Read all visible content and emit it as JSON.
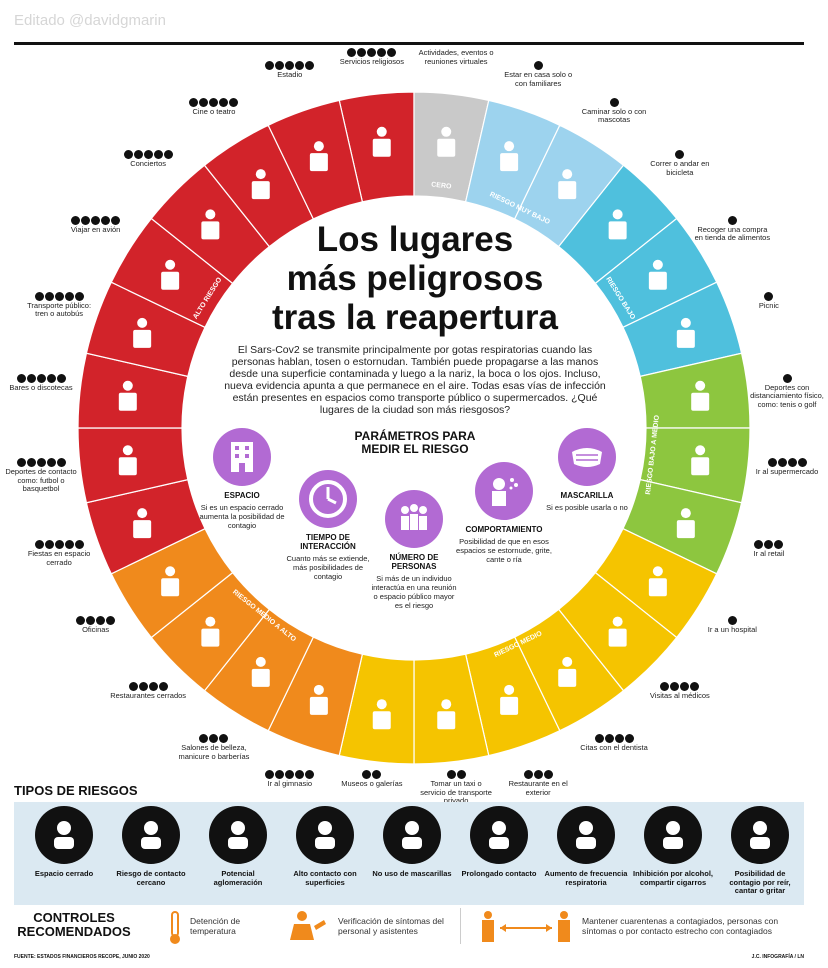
{
  "watermark": "Editado @davidgmarin",
  "title_lines": [
    "Los lugares",
    "más peligrosos",
    "tras la reapertura"
  ],
  "intro": "El Sars-Cov2 se transmite principalmente por gotas respiratorias cuando las personas hablan, tosen o estornudan. También puede propagarse a las manos desde una superficie contaminada y luego a la nariz, la boca o los ojos. Incluso, nueva evidencia apunta a que permanece en el aire. Todas esas vías de infección están presentes en espacios como transporte público o supermercados. ¿Qué lugares de la ciudad son más riesgosos?",
  "ring_levels": {
    "cero": "CERO",
    "muy_bajo": "RIESGO MUY BAJO",
    "bajo": "RIESGO BAJO",
    "bajo_medio": "RIESGO BAJO A MEDIO",
    "medio": "RIESGO MEDIO",
    "medio_alto": "RIESGO MEDIO A ALTO",
    "alto": "ALTO RIESGO"
  },
  "colors": {
    "cero": "#c9c9c9",
    "muy_bajo": "#9dd3ee",
    "bajo": "#4fc0dd",
    "bajo_medio": "#8dc63f",
    "medio": "#f5c400",
    "medio_alto": "#f08a1c",
    "alto": "#d2232a",
    "purple": "#b26ad3",
    "band": "#dbe9f2"
  },
  "places": [
    {
      "label": "Servicios religiosos",
      "dots": 5,
      "icon": "church-icon"
    },
    {
      "label": "Actividades, eventos o reuniones virtuales",
      "dots": 0,
      "icon": "laptop-user-icon"
    },
    {
      "label": "Estar en casa solo o con familiares",
      "dots": 1,
      "icon": "house-icon"
    },
    {
      "label": "Caminar solo o con mascotas",
      "dots": 1,
      "icon": "dog-walk-icon"
    },
    {
      "label": "Correr o andar en bicicleta",
      "dots": 1,
      "icon": "bicycle-icon"
    },
    {
      "label": "Recoger una compra en tienda de alimentos",
      "dots": 1,
      "icon": "grocery-basket-icon"
    },
    {
      "label": "Picnic",
      "dots": 1,
      "icon": "picnic-icon"
    },
    {
      "label": "Deportes con distanciamiento físico, como: tenis o golf",
      "dots": 1,
      "icon": "tennis-icon"
    },
    {
      "label": "Ir al supermercado",
      "dots": 4,
      "icon": "shopping-cart-icon"
    },
    {
      "label": "Ir al retail",
      "dots": 3,
      "icon": "shopping-bag-icon"
    },
    {
      "label": "Ir a un hospital",
      "dots": 1,
      "icon": "hospital-icon"
    },
    {
      "label": "Visitas al médicos",
      "dots": 4,
      "icon": "doctor-icon"
    },
    {
      "label": "Citas con el dentista",
      "dots": 4,
      "icon": "tooth-icon"
    },
    {
      "label": "Restaurante en el exterior",
      "dots": 3,
      "icon": "outdoor-restaurant-icon"
    },
    {
      "label": "Tomar un taxi o servicio de transporte privado",
      "dots": 2,
      "icon": "taxi-icon"
    },
    {
      "label": "Museos o galerías",
      "dots": 2,
      "icon": "museum-icon"
    },
    {
      "label": "Ir al gimnasio",
      "dots": 5,
      "icon": "weightlifter-icon"
    },
    {
      "label": "Salones de belleza, manicure o barberías",
      "dots": 3,
      "icon": "barber-icon"
    },
    {
      "label": "Restaurantes cerrados",
      "dots": 4,
      "icon": "restaurant-icon"
    },
    {
      "label": "Oficinas",
      "dots": 4,
      "icon": "office-icon"
    },
    {
      "label": "Fiestas en espacio cerrado",
      "dots": 5,
      "icon": "party-icon"
    },
    {
      "label": "Deportes de contacto como: futbol o basquetbol",
      "dots": 5,
      "icon": "soccer-icon"
    },
    {
      "label": "Bares o discotecas",
      "dots": 5,
      "icon": "bar-icon"
    },
    {
      "label": "Transporte público: tren o autobús",
      "dots": 5,
      "icon": "bus-icon"
    },
    {
      "label": "Viajar en avión",
      "dots": 5,
      "icon": "airplane-icon"
    },
    {
      "label": "Conciertos",
      "dots": 5,
      "icon": "concert-icon"
    },
    {
      "label": "Cine o teatro",
      "dots": 5,
      "icon": "cinema-icon"
    },
    {
      "label": "Estadio",
      "dots": 5,
      "icon": "stadium-icon"
    }
  ],
  "params": {
    "title": "PARÁMETROS PARA MEDIR EL RIESGO",
    "items": [
      {
        "name": "ESPACIO",
        "desc": "Si es un espacio cerrado aumenta la posibilidad de contagio",
        "icon": "building-icon"
      },
      {
        "name": "TIEMPO DE INTERACCIÓN",
        "desc": "Cuanto más se extiende, más posibilidades de contagio",
        "icon": "clock-icon"
      },
      {
        "name": "NÚMERO DE PERSONAS",
        "desc": "Si más de un individuo interactúa en una reunión o espacio público mayor es el riesgo",
        "icon": "group-icon"
      },
      {
        "name": "COMPORTAMIENTO",
        "desc": "Posibilidad de que en esos espacios se estornude, grite, cante o ría",
        "icon": "sneeze-icon"
      },
      {
        "name": "MASCARILLA",
        "desc": "Si es posible usarla o no",
        "icon": "mask-icon"
      }
    ]
  },
  "risk_types": {
    "title": "TIPOS DE RIESGOS",
    "items": [
      {
        "label": "Espacio cerrado",
        "icon": "closed-space-icon"
      },
      {
        "label": "Riesgo de contacto cercano",
        "icon": "handshake-icon"
      },
      {
        "label": "Potencial aglomeración",
        "icon": "crowd-icon"
      },
      {
        "label": "Alto contacto con superficies",
        "icon": "table-surface-icon"
      },
      {
        "label": "No uso de mascarillas",
        "icon": "no-mask-icon"
      },
      {
        "label": "Prolongado contacto",
        "icon": "two-people-icon"
      },
      {
        "label": "Aumento de frecuencia respiratoria",
        "icon": "lungs-icon"
      },
      {
        "label": "Inhibición por alcohol, compartir cigarros",
        "icon": "beer-icon"
      },
      {
        "label": "Posibilidad de contagio por reír, cantar o gritar",
        "icon": "laughing-face-icon"
      }
    ]
  },
  "controls": {
    "title": "CONTROLES RECOMENDADOS",
    "items": [
      {
        "text": "Detención de temperatura",
        "icon": "thermometer-icon"
      },
      {
        "text": "Verificación de síntomas del personal y asistentes",
        "icon": "screening-icon"
      },
      {
        "text": "Mantener cuarentenas a contagiados, personas con síntomas o por contacto estrecho con contagiados",
        "icon": "distance-icon"
      }
    ]
  },
  "footer": {
    "source": "FUENTE: ESTADOS FINANCIEROS RECOPE, JUNIO 2020",
    "credit": "J.C. INFOGRAFÍA / LN"
  }
}
